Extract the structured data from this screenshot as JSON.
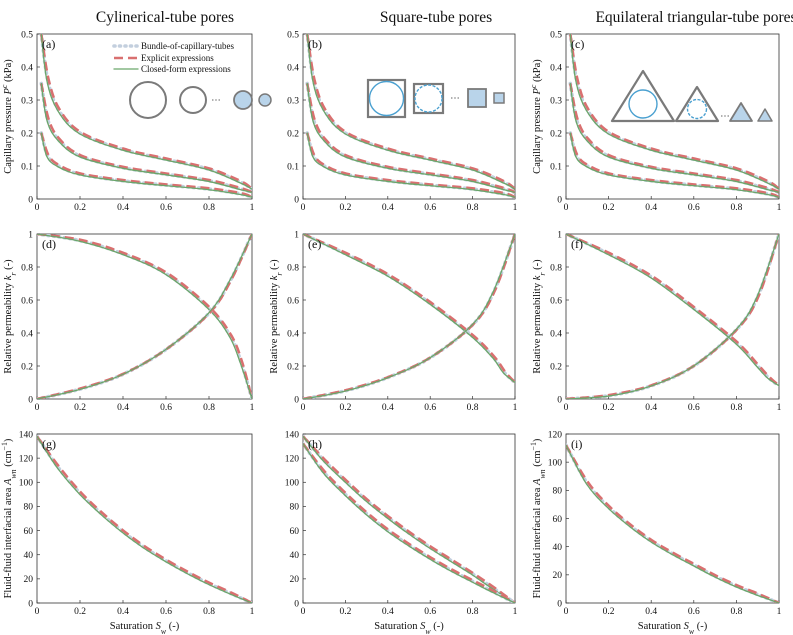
{
  "column_titles": [
    "Cylinerical-tube pores",
    "Square-tube pores",
    "Equilateral triangular-tube pores"
  ],
  "legend": [
    {
      "label": "Bundle-of-capillary-tubes",
      "color": "#c3cfde",
      "style": "dotted"
    },
    {
      "label": "Explicit expressions",
      "color": "#d97070",
      "style": "dashed"
    },
    {
      "label": "Closed-form expressions",
      "color": "#6aa66a",
      "style": "solid"
    }
  ],
  "colors": {
    "bundle": "#c3cfde",
    "explicit": "#d97070",
    "closed": "#6aa66a",
    "shape_fill": "#b9d4ea",
    "shape_stroke": "#7a7a7a",
    "water": "#4aa0d0"
  },
  "icons": [
    "circle-tube-icon",
    "square-tube-icon",
    "triangle-tube-icon"
  ],
  "chart_data": [
    {
      "type": "line",
      "panel_label": "(a)",
      "xlabel": "",
      "ylabel": "Capillary pressure P^c (kPa)",
      "xlim": [
        0,
        1
      ],
      "ylim": [
        0,
        0.5
      ],
      "xticks": [
        "0",
        "0.2",
        "0.4",
        "0.6",
        "0.8",
        "1"
      ],
      "yticks": [
        "0",
        "0.1",
        "0.2",
        "0.3",
        "0.4",
        "0.5"
      ],
      "series": [
        {
          "x": [
            0.02,
            0.05,
            0.1,
            0.2,
            0.4,
            0.6,
            0.8,
            0.95,
            1.0
          ],
          "y": [
            0.5,
            0.36,
            0.27,
            0.2,
            0.15,
            0.12,
            0.09,
            0.05,
            0.03
          ]
        },
        {
          "x": [
            0.02,
            0.05,
            0.1,
            0.2,
            0.4,
            0.6,
            0.8,
            0.95,
            1.0
          ],
          "y": [
            0.35,
            0.24,
            0.18,
            0.13,
            0.095,
            0.075,
            0.055,
            0.03,
            0.02
          ]
        },
        {
          "x": [
            0.02,
            0.05,
            0.1,
            0.2,
            0.4,
            0.6,
            0.8,
            0.95,
            1.0
          ],
          "y": [
            0.2,
            0.13,
            0.1,
            0.075,
            0.055,
            0.042,
            0.03,
            0.015,
            0.005
          ]
        }
      ]
    },
    {
      "type": "line",
      "panel_label": "(b)",
      "xlabel": "",
      "ylabel": "",
      "xlim": [
        0,
        1
      ],
      "ylim": [
        0,
        0.5
      ],
      "xticks": [
        "0",
        "0.2",
        "0.4",
        "0.6",
        "0.8",
        "1"
      ],
      "yticks": [
        "0",
        "0.1",
        "0.2",
        "0.3",
        "0.4",
        "0.5"
      ],
      "series": [
        {
          "x": [
            0.02,
            0.05,
            0.1,
            0.2,
            0.4,
            0.6,
            0.8,
            0.95,
            1.0
          ],
          "y": [
            0.5,
            0.36,
            0.27,
            0.2,
            0.15,
            0.12,
            0.09,
            0.05,
            0.03
          ]
        },
        {
          "x": [
            0.02,
            0.05,
            0.1,
            0.2,
            0.4,
            0.6,
            0.8,
            0.95,
            1.0
          ],
          "y": [
            0.35,
            0.24,
            0.18,
            0.13,
            0.095,
            0.075,
            0.055,
            0.03,
            0.02
          ]
        },
        {
          "x": [
            0.02,
            0.05,
            0.1,
            0.2,
            0.4,
            0.6,
            0.8,
            0.95,
            1.0
          ],
          "y": [
            0.2,
            0.13,
            0.1,
            0.075,
            0.055,
            0.042,
            0.03,
            0.015,
            0.005
          ]
        }
      ]
    },
    {
      "type": "line",
      "panel_label": "(c)",
      "xlabel": "",
      "ylabel": "Capillary pressure P^c (kPa)",
      "xlim": [
        0,
        1
      ],
      "ylim": [
        0,
        0.5
      ],
      "xticks": [
        "0",
        "0.2",
        "0.4",
        "0.6",
        "0.8",
        "1"
      ],
      "yticks": [
        "0",
        "0.1",
        "0.2",
        "0.3",
        "0.4",
        "0.5"
      ],
      "series": [
        {
          "x": [
            0.02,
            0.05,
            0.1,
            0.2,
            0.4,
            0.6,
            0.8,
            0.95,
            1.0
          ],
          "y": [
            0.5,
            0.36,
            0.27,
            0.2,
            0.15,
            0.12,
            0.09,
            0.05,
            0.03
          ]
        },
        {
          "x": [
            0.02,
            0.05,
            0.1,
            0.2,
            0.4,
            0.6,
            0.8,
            0.95,
            1.0
          ],
          "y": [
            0.35,
            0.24,
            0.18,
            0.13,
            0.095,
            0.075,
            0.055,
            0.03,
            0.02
          ]
        },
        {
          "x": [
            0.02,
            0.05,
            0.1,
            0.2,
            0.4,
            0.6,
            0.8,
            0.95,
            1.0
          ],
          "y": [
            0.2,
            0.13,
            0.1,
            0.075,
            0.055,
            0.042,
            0.03,
            0.015,
            0.005
          ]
        }
      ]
    },
    {
      "type": "line",
      "panel_label": "(d)",
      "xlabel": "",
      "ylabel": "Relative permeability k_r (-)",
      "xlim": [
        0,
        1
      ],
      "ylim": [
        0,
        1
      ],
      "xticks": [
        "0",
        "0.2",
        "0.4",
        "0.6",
        "0.8",
        "1"
      ],
      "yticks": [
        "0",
        "0.2",
        "0.4",
        "0.6",
        "0.8",
        "1"
      ],
      "series": [
        {
          "x": [
            0,
            0.2,
            0.4,
            0.6,
            0.8,
            0.9,
            0.95,
            1.0
          ],
          "y": [
            1.0,
            0.96,
            0.88,
            0.76,
            0.55,
            0.38,
            0.22,
            0
          ]
        },
        {
          "x": [
            0,
            0.2,
            0.4,
            0.6,
            0.8,
            0.9,
            1.0
          ],
          "y": [
            0,
            0.06,
            0.15,
            0.3,
            0.52,
            0.72,
            1.0
          ]
        }
      ]
    },
    {
      "type": "line",
      "panel_label": "(e)",
      "xlabel": "",
      "ylabel": "Relative permeability k_r (-)",
      "xlim": [
        0,
        1
      ],
      "ylim": [
        0,
        1
      ],
      "xticks": [
        "0",
        "0.2",
        "0.4",
        "0.6",
        "0.8",
        "1"
      ],
      "yticks": [
        "0",
        "0.2",
        "0.4",
        "0.6",
        "0.8",
        "1"
      ],
      "series": [
        {
          "x": [
            0,
            0.2,
            0.4,
            0.6,
            0.8,
            0.9,
            0.95,
            1.0
          ],
          "y": [
            1.0,
            0.88,
            0.75,
            0.58,
            0.38,
            0.25,
            0.16,
            0.1
          ]
        },
        {
          "x": [
            0,
            0.2,
            0.4,
            0.6,
            0.8,
            0.9,
            1.0
          ],
          "y": [
            0,
            0.05,
            0.13,
            0.25,
            0.45,
            0.65,
            1.0
          ]
        }
      ]
    },
    {
      "type": "line",
      "panel_label": "(f)",
      "xlabel": "",
      "ylabel": "Relative permeability k_r (-)",
      "xlim": [
        0,
        1
      ],
      "ylim": [
        0,
        1
      ],
      "xticks": [
        "0",
        "0.2",
        "0.4",
        "0.6",
        "0.8",
        "1"
      ],
      "yticks": [
        "0",
        "0.2",
        "0.4",
        "0.6",
        "0.8",
        "1"
      ],
      "series": [
        {
          "x": [
            0,
            0.2,
            0.4,
            0.6,
            0.8,
            0.9,
            0.95,
            1.0
          ],
          "y": [
            1.0,
            0.88,
            0.74,
            0.55,
            0.34,
            0.2,
            0.13,
            0.08
          ]
        },
        {
          "x": [
            0,
            0.2,
            0.4,
            0.6,
            0.8,
            0.9,
            1.0
          ],
          "y": [
            0,
            0.02,
            0.08,
            0.2,
            0.42,
            0.62,
            1.0
          ]
        }
      ]
    },
    {
      "type": "line",
      "panel_label": "(g)",
      "xlabel": "Saturation S_w (-)",
      "ylabel": "Fluid-fluid interfacial area A_wn (cm^-1)",
      "xlim": [
        0,
        1
      ],
      "ylim": [
        0,
        140
      ],
      "xticks": [
        "0",
        "0.2",
        "0.4",
        "0.6",
        "0.8",
        "1"
      ],
      "yticks": [
        "0",
        "20",
        "40",
        "60",
        "80",
        "100",
        "120",
        "140"
      ],
      "series": [
        {
          "x": [
            0,
            0.1,
            0.2,
            0.3,
            0.4,
            0.5,
            0.6,
            0.7,
            0.8,
            0.9,
            1.0
          ],
          "y": [
            138,
            112,
            91,
            74,
            59,
            46,
            35,
            25,
            16,
            8,
            0
          ]
        }
      ]
    },
    {
      "type": "line",
      "panel_label": "(h)",
      "xlabel": "Saturation S_w (-)",
      "ylabel": "",
      "xlim": [
        0,
        1
      ],
      "ylim": [
        0,
        140
      ],
      "xticks": [
        "0",
        "0.2",
        "0.4",
        "0.6",
        "0.8",
        "1"
      ],
      "yticks": [
        "0",
        "20",
        "40",
        "60",
        "80",
        "100",
        "120",
        "140"
      ],
      "series": [
        {
          "x": [
            0,
            0.1,
            0.2,
            0.3,
            0.4,
            0.5,
            0.6,
            0.7,
            0.8,
            0.9,
            1.0
          ],
          "y": [
            138,
            118,
            101,
            85,
            71,
            58,
            46,
            35,
            24,
            12,
            0
          ]
        },
        {
          "x": [
            0,
            0.1,
            0.2,
            0.3,
            0.4,
            0.5,
            0.6,
            0.7,
            0.8,
            0.9,
            1.0
          ],
          "y": [
            132,
            108,
            90,
            74,
            60,
            48,
            37,
            27,
            18,
            9,
            0
          ]
        }
      ]
    },
    {
      "type": "line",
      "panel_label": "(i)",
      "xlabel": "Saturation S_w (-)",
      "ylabel": "Fluid-fluid interfacial area A_wn (cm^-1)",
      "xlim": [
        0,
        1
      ],
      "ylim": [
        0,
        120
      ],
      "xticks": [
        "0",
        "0.2",
        "0.4",
        "0.6",
        "0.8",
        "1"
      ],
      "yticks": [
        "0",
        "20",
        "40",
        "60",
        "80",
        "100",
        "120"
      ],
      "series": [
        {
          "x": [
            0,
            0.1,
            0.2,
            0.3,
            0.4,
            0.5,
            0.6,
            0.7,
            0.8,
            0.9,
            1.0
          ],
          "y": [
            112,
            85,
            68,
            55,
            44,
            35,
            27,
            19,
            12,
            6,
            0
          ]
        }
      ]
    }
  ]
}
